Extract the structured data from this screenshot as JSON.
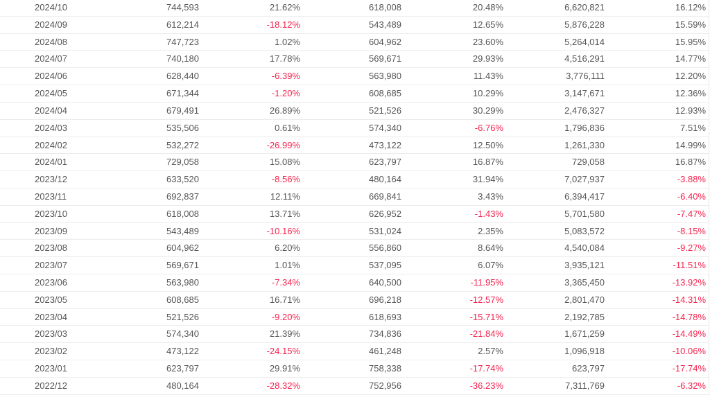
{
  "colors": {
    "text": "#555555",
    "negative": "#f5224d",
    "border": "#ececec"
  },
  "table": {
    "rows": [
      [
        "2024/10",
        "744,593",
        "21.62%",
        "618,008",
        "20.48%",
        "6,620,821",
        "16.12%"
      ],
      [
        "2024/09",
        "612,214",
        "-18.12%",
        "543,489",
        "12.65%",
        "5,876,228",
        "15.59%"
      ],
      [
        "2024/08",
        "747,723",
        "1.02%",
        "604,962",
        "23.60%",
        "5,264,014",
        "15.95%"
      ],
      [
        "2024/07",
        "740,180",
        "17.78%",
        "569,671",
        "29.93%",
        "4,516,291",
        "14.77%"
      ],
      [
        "2024/06",
        "628,440",
        "-6.39%",
        "563,980",
        "11.43%",
        "3,776,111",
        "12.20%"
      ],
      [
        "2024/05",
        "671,344",
        "-1.20%",
        "608,685",
        "10.29%",
        "3,147,671",
        "12.36%"
      ],
      [
        "2024/04",
        "679,491",
        "26.89%",
        "521,526",
        "30.29%",
        "2,476,327",
        "12.93%"
      ],
      [
        "2024/03",
        "535,506",
        "0.61%",
        "574,340",
        "-6.76%",
        "1,796,836",
        "7.51%"
      ],
      [
        "2024/02",
        "532,272",
        "-26.99%",
        "473,122",
        "12.50%",
        "1,261,330",
        "14.99%"
      ],
      [
        "2024/01",
        "729,058",
        "15.08%",
        "623,797",
        "16.87%",
        "729,058",
        "16.87%"
      ],
      [
        "2023/12",
        "633,520",
        "-8.56%",
        "480,164",
        "31.94%",
        "7,027,937",
        "-3.88%"
      ],
      [
        "2023/11",
        "692,837",
        "12.11%",
        "669,841",
        "3.43%",
        "6,394,417",
        "-6.40%"
      ],
      [
        "2023/10",
        "618,008",
        "13.71%",
        "626,952",
        "-1.43%",
        "5,701,580",
        "-7.47%"
      ],
      [
        "2023/09",
        "543,489",
        "-10.16%",
        "531,024",
        "2.35%",
        "5,083,572",
        "-8.15%"
      ],
      [
        "2023/08",
        "604,962",
        "6.20%",
        "556,860",
        "8.64%",
        "4,540,084",
        "-9.27%"
      ],
      [
        "2023/07",
        "569,671",
        "1.01%",
        "537,095",
        "6.07%",
        "3,935,121",
        "-11.51%"
      ],
      [
        "2023/06",
        "563,980",
        "-7.34%",
        "640,500",
        "-11.95%",
        "3,365,450",
        "-13.92%"
      ],
      [
        "2023/05",
        "608,685",
        "16.71%",
        "696,218",
        "-12.57%",
        "2,801,470",
        "-14.31%"
      ],
      [
        "2023/04",
        "521,526",
        "-9.20%",
        "618,693",
        "-15.71%",
        "2,192,785",
        "-14.78%"
      ],
      [
        "2023/03",
        "574,340",
        "21.39%",
        "734,836",
        "-21.84%",
        "1,671,259",
        "-14.49%"
      ],
      [
        "2023/02",
        "473,122",
        "-24.15%",
        "461,248",
        "2.57%",
        "1,096,918",
        "-10.06%"
      ],
      [
        "2023/01",
        "623,797",
        "29.91%",
        "758,338",
        "-17.74%",
        "623,797",
        "-17.74%"
      ],
      [
        "2022/12",
        "480,164",
        "-28.32%",
        "752,956",
        "-36.23%",
        "7,311,769",
        "-6.32%"
      ]
    ]
  }
}
